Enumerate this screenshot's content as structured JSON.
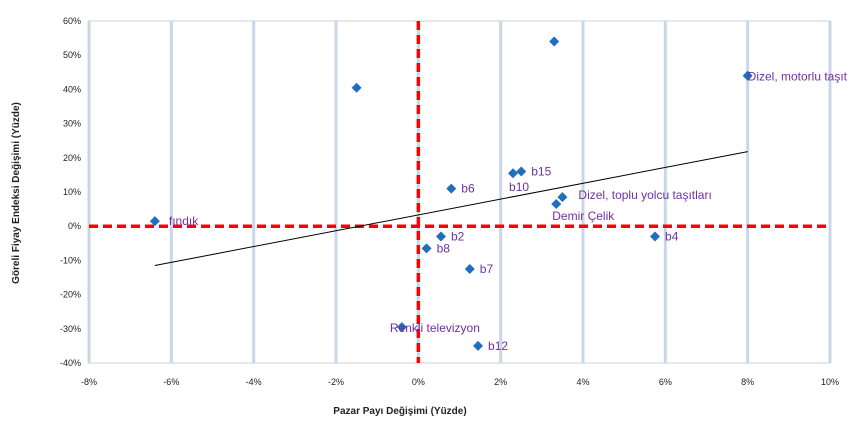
{
  "chart_data": {
    "type": "scatter",
    "xlabel": "Pazar Payı Değişimi (Yüzde)",
    "ylabel": "Göreli Fiyay Endeksi Değişimi (Yüzde)",
    "xlim": [
      -8,
      10
    ],
    "ylim": [
      -40,
      60
    ],
    "x_ticks": [
      "-8%",
      "-6%",
      "-4%",
      "-2%",
      "0%",
      "2%",
      "4%",
      "6%",
      "8%",
      "10%"
    ],
    "y_ticks": [
      "-40%",
      "-30%",
      "-20%",
      "-10%",
      "0%",
      "10%",
      "20%",
      "30%",
      "40%",
      "50%",
      "60%"
    ],
    "grid": "vertical",
    "marker_color": "#1f6fbf",
    "label_color": "#7030a0",
    "reference_line_color": "#ff0000",
    "reference_lines": {
      "x": 0,
      "y": 0
    },
    "trendline": {
      "from": [
        -6.4,
        -11.5
      ],
      "to": [
        8.0,
        21.8
      ]
    },
    "points": [
      {
        "x": -6.4,
        "y": 1.5,
        "label": "fındık"
      },
      {
        "x": -1.5,
        "y": 40.5,
        "label": ""
      },
      {
        "x": 3.3,
        "y": 54.0,
        "label": ""
      },
      {
        "x": 8.0,
        "y": 44.0,
        "label": "Dizel, motorlu taşıt"
      },
      {
        "x": 0.8,
        "y": 11.0,
        "label": "b6"
      },
      {
        "x": 2.3,
        "y": 15.5,
        "label": "b10"
      },
      {
        "x": 2.5,
        "y": 16.0,
        "label": "b15"
      },
      {
        "x": 3.5,
        "y": 8.5,
        "label": "Dizel, toplu yolcu taşıtları"
      },
      {
        "x": 3.35,
        "y": 6.5,
        "label": "Demir Çelik"
      },
      {
        "x": 5.75,
        "y": -3.0,
        "label": "b4"
      },
      {
        "x": 0.55,
        "y": -3.0,
        "label": "b2"
      },
      {
        "x": 0.2,
        "y": -6.5,
        "label": "b8"
      },
      {
        "x": 1.25,
        "y": -12.5,
        "label": "b7"
      },
      {
        "x": -0.4,
        "y": -29.5,
        "label": "Renkli televizyon"
      },
      {
        "x": 1.45,
        "y": -35.0,
        "label": "b12"
      }
    ]
  }
}
